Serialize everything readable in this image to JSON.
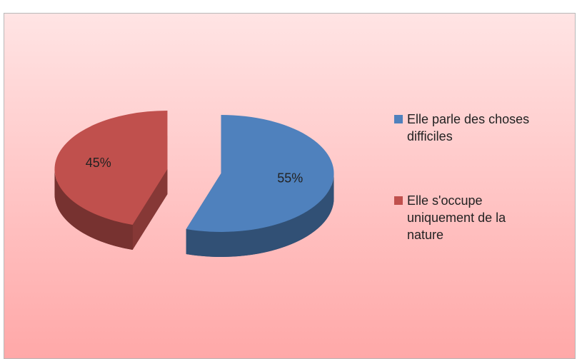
{
  "chart_data": {
    "type": "pie",
    "categories": [
      "Elle parle des choses difficiles",
      "Elle s'occupe uniquement de la nature"
    ],
    "values": [
      55,
      45
    ],
    "value_labels": [
      "55%",
      "45%"
    ],
    "colors": [
      "#4f81bd",
      "#c0504d"
    ],
    "legend": "right"
  }
}
